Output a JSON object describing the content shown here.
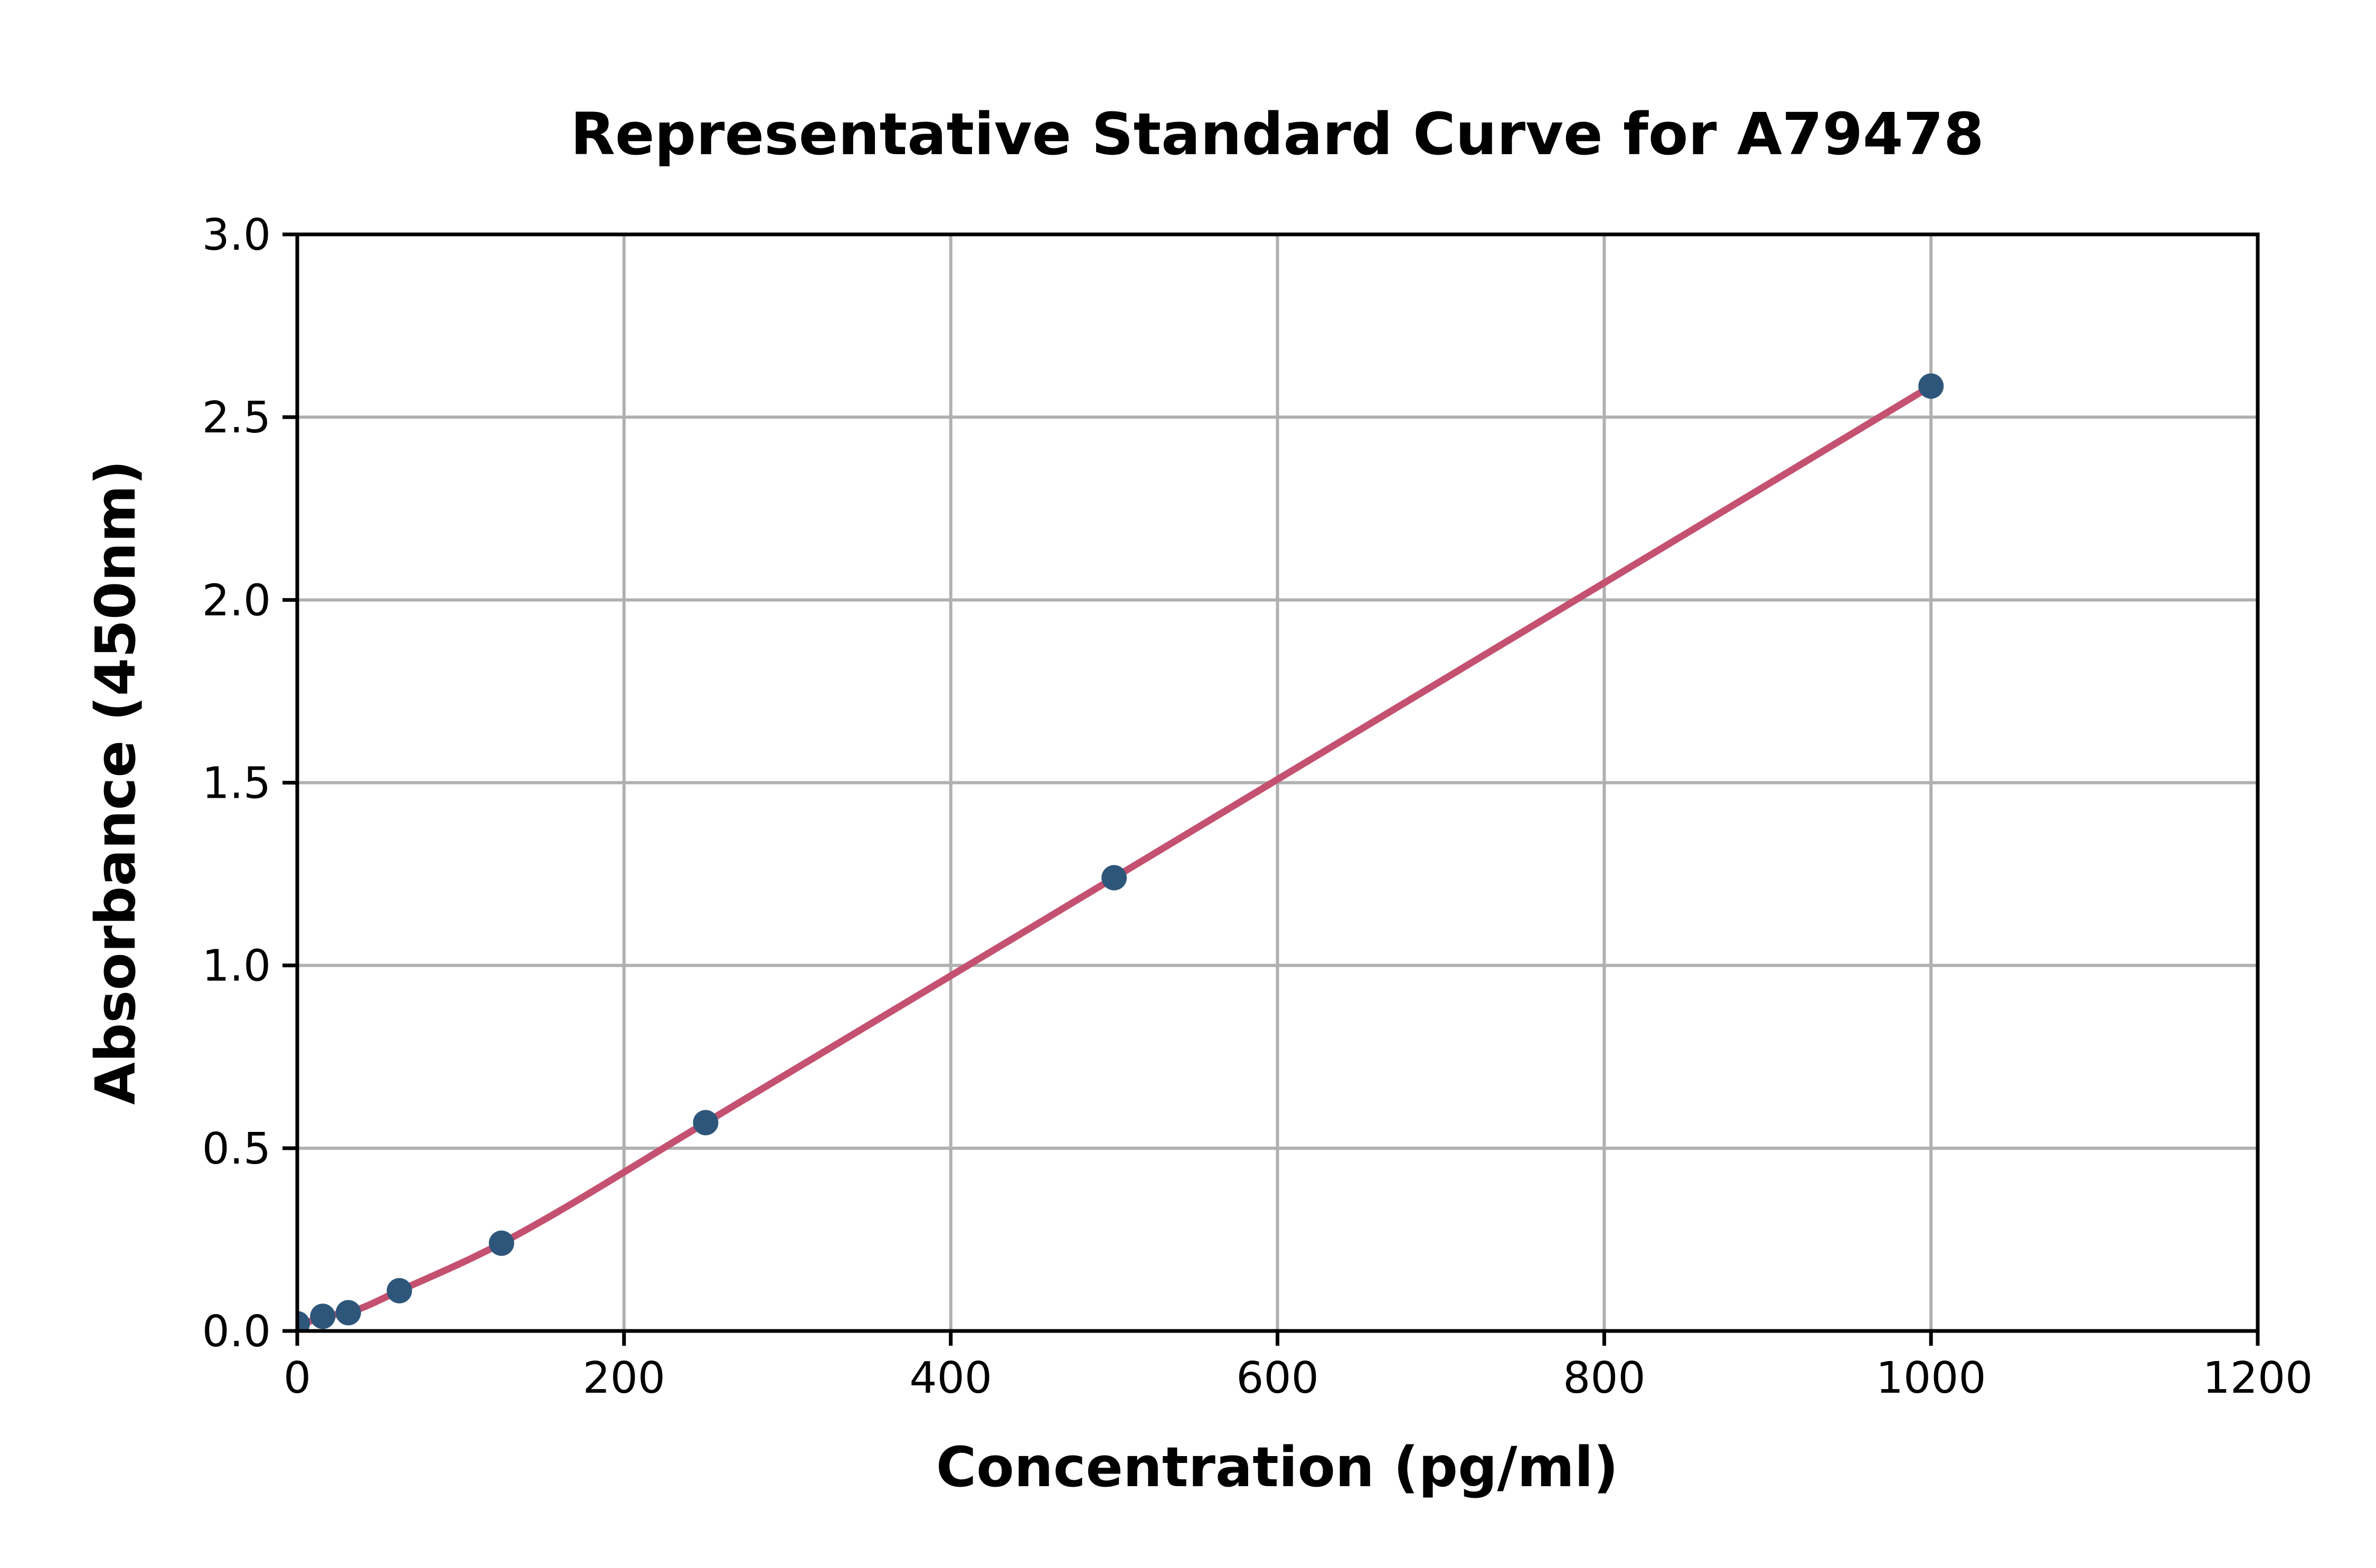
{
  "page": {
    "background": "#ffffff"
  },
  "chart_data": {
    "type": "scatter",
    "title": "Representative Standard Curve for A79478",
    "xlabel": "Concentration (pg/ml)",
    "ylabel": "Absorbance (450nm)",
    "xlim": [
      0,
      1200
    ],
    "ylim": [
      0.0,
      3.0
    ],
    "grid": true,
    "legend_position": "none",
    "x_ticks": {
      "values": [
        0,
        200,
        400,
        600,
        800,
        1000,
        1200
      ],
      "labels": [
        "0",
        "200",
        "400",
        "600",
        "800",
        "1000",
        "1200"
      ]
    },
    "y_ticks": {
      "values": [
        0.0,
        0.5,
        1.0,
        1.5,
        2.0,
        2.5,
        3.0
      ],
      "labels": [
        "0.0",
        "0.5",
        "1.0",
        "1.5",
        "2.0",
        "2.5",
        "3.0"
      ]
    },
    "series": [
      {
        "name": "standard-points",
        "type": "scatter",
        "marker": "circle",
        "color": "#2e567a",
        "x": [
          0,
          15.6,
          31.25,
          62.5,
          125,
          250,
          500,
          1000
        ],
        "y": [
          0.02,
          0.04,
          0.05,
          0.11,
          0.24,
          0.57,
          1.24,
          2.585
        ]
      },
      {
        "name": "fitted-curve",
        "type": "line",
        "color": "#c45170",
        "x": [
          0,
          15.6,
          31.25,
          62.5,
          125,
          250,
          500,
          1000
        ],
        "y": [
          0.01,
          0.04,
          0.05,
          0.11,
          0.24,
          0.57,
          1.24,
          2.585
        ]
      }
    ],
    "colors": {
      "grid": "#b0b0b0",
      "axis": "#000000",
      "background": "#ffffff",
      "marker": "#2e567a",
      "line": "#c45170"
    }
  }
}
